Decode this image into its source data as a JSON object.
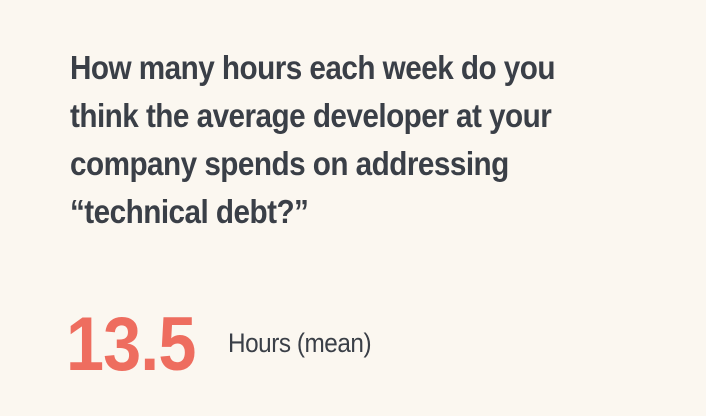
{
  "question": "How many hours each week do you think the average developer at your company spends on addressing “technical debt?”",
  "stat": {
    "value": "13.5",
    "label": "Hours (mean)"
  },
  "colors": {
    "background": "#fbf7f0",
    "text": "#3a3f47",
    "accent": "#ee6d5f"
  }
}
